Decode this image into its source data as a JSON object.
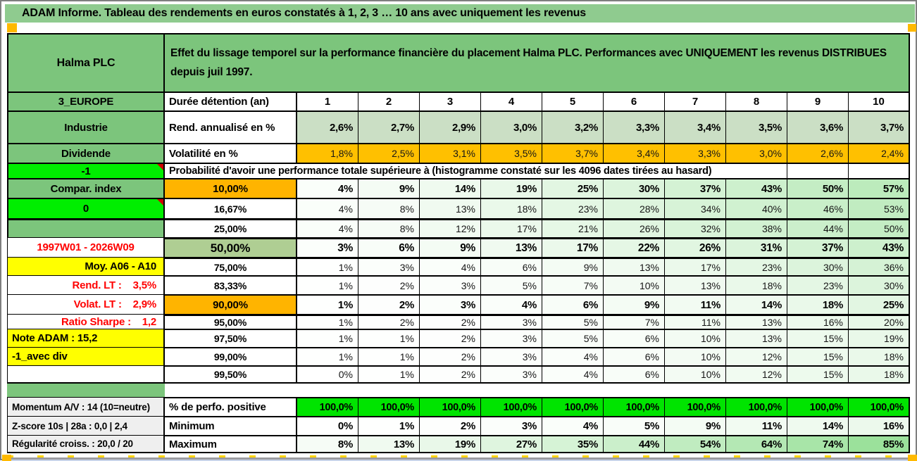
{
  "title_bar": {
    "text": "ADAM Informe. Tableau des rendements en euros constatés à 1, 2, 3 … 10 ans avec uniquement les revenus"
  },
  "header": {
    "instrument": "Halma PLC",
    "description": "Effet du lissage temporel sur la performance financière du placement Halma PLC. Performances avec UNIQUEMENT les revenus DISTRIBUES depuis juil 1997."
  },
  "left_panel": {
    "rows": [
      {
        "label": "3_EUROPE",
        "style": "green"
      },
      {
        "label": "Industrie",
        "style": "green"
      },
      {
        "label": "Dividende",
        "style": "green"
      },
      {
        "label": "-1",
        "style": "bright"
      },
      {
        "label": "Compar. index",
        "style": "green"
      },
      {
        "label": "0",
        "style": "bright"
      },
      {
        "label": "",
        "style": "green"
      },
      {
        "label": "1997W01 - 2026W09",
        "style": "red"
      },
      {
        "label": "Moy. A06 - A10",
        "style": "yellow-right"
      },
      {
        "label": "Rend. LT :    3,5%",
        "style": "red-right"
      },
      {
        "label": "Volat. LT :    2,9%",
        "style": "red-right"
      },
      {
        "label": "Ratio Sharpe :    1,2",
        "style": "red-right"
      },
      {
        "label": "Note ADAM : 15,2",
        "style": "yellow-left"
      },
      {
        "label": "-1_avec div",
        "style": "yellow-left"
      },
      {
        "label": "",
        "style": "white"
      },
      {
        "label": "Momentum A/V : 14 (10=neutre)",
        "style": "gray"
      },
      {
        "label": "Z-score 10s | 28a : 0,0 | 2,4",
        "style": "gray"
      },
      {
        "label": "Régularité croiss. : 20,0 / 20",
        "style": "gray"
      }
    ]
  },
  "table": {
    "duration_label": "Durée détention (an)",
    "durations": [
      "1",
      "2",
      "3",
      "4",
      "5",
      "6",
      "7",
      "8",
      "9",
      "10"
    ],
    "rend_label": "Rend. annualisé en %",
    "rend_values": [
      "2,6%",
      "2,7%",
      "2,9%",
      "3,0%",
      "3,2%",
      "3,3%",
      "3,4%",
      "3,5%",
      "3,6%",
      "3,7%"
    ],
    "vol_label": "Volatilité en %",
    "vol_values": [
      "1,8%",
      "2,5%",
      "3,1%",
      "3,5%",
      "3,7%",
      "3,4%",
      "3,3%",
      "3,0%",
      "2,6%",
      "2,4%"
    ],
    "prob_header": "Probabilité d'avoir une performance totale supérieure à (histogramme constaté sur les 4096 dates tirées au hasard)",
    "percentile_rows": [
      {
        "label": "10,00%",
        "highlight": "orange",
        "bold": true,
        "values": [
          "4%",
          "9%",
          "14%",
          "19%",
          "25%",
          "30%",
          "37%",
          "43%",
          "50%",
          "57%"
        ]
      },
      {
        "label": "16,67%",
        "highlight": "none",
        "bold": false,
        "values": [
          "4%",
          "8%",
          "13%",
          "18%",
          "23%",
          "28%",
          "34%",
          "40%",
          "46%",
          "53%"
        ]
      },
      {
        "label": "25,00%",
        "highlight": "none",
        "bold": false,
        "values": [
          "4%",
          "8%",
          "12%",
          "17%",
          "21%",
          "26%",
          "32%",
          "38%",
          "44%",
          "50%"
        ]
      },
      {
        "label": "50,00%",
        "highlight": "green",
        "bold": true,
        "values": [
          "3%",
          "6%",
          "9%",
          "13%",
          "17%",
          "22%",
          "26%",
          "31%",
          "37%",
          "43%"
        ]
      },
      {
        "label": "75,00%",
        "highlight": "none",
        "bold": false,
        "values": [
          "1%",
          "3%",
          "4%",
          "6%",
          "9%",
          "13%",
          "17%",
          "23%",
          "30%",
          "36%"
        ]
      },
      {
        "label": "83,33%",
        "highlight": "none",
        "bold": false,
        "values": [
          "1%",
          "2%",
          "3%",
          "5%",
          "7%",
          "10%",
          "13%",
          "18%",
          "23%",
          "30%"
        ]
      },
      {
        "label": "90,00%",
        "highlight": "orange",
        "bold": true,
        "values": [
          "1%",
          "2%",
          "3%",
          "4%",
          "6%",
          "9%",
          "11%",
          "14%",
          "18%",
          "25%"
        ]
      },
      {
        "label": "95,00%",
        "highlight": "none",
        "bold": false,
        "values": [
          "1%",
          "2%",
          "2%",
          "3%",
          "5%",
          "7%",
          "11%",
          "13%",
          "16%",
          "20%"
        ]
      },
      {
        "label": "97,50%",
        "highlight": "none",
        "bold": false,
        "values": [
          "1%",
          "1%",
          "2%",
          "3%",
          "5%",
          "6%",
          "10%",
          "13%",
          "15%",
          "19%"
        ]
      },
      {
        "label": "99,00%",
        "highlight": "none",
        "bold": false,
        "values": [
          "1%",
          "1%",
          "2%",
          "3%",
          "4%",
          "6%",
          "10%",
          "12%",
          "15%",
          "18%"
        ]
      },
      {
        "label": "99,50%",
        "highlight": "none",
        "bold": false,
        "values": [
          "0%",
          "1%",
          "2%",
          "3%",
          "4%",
          "6%",
          "10%",
          "12%",
          "15%",
          "18%"
        ]
      }
    ],
    "summary_rows": [
      {
        "label": "% de perfo. positive",
        "style": "positive",
        "values": [
          "100,0%",
          "100,0%",
          "100,0%",
          "100,0%",
          "100,0%",
          "100,0%",
          "100,0%",
          "100,0%",
          "100,0%",
          "100,0%"
        ]
      },
      {
        "label": "Minimum",
        "style": "minmax",
        "values": [
          "0%",
          "1%",
          "2%",
          "3%",
          "4%",
          "5%",
          "9%",
          "11%",
          "14%",
          "16%"
        ]
      },
      {
        "label": "Maximum",
        "style": "minmax",
        "values": [
          "8%",
          "13%",
          "19%",
          "27%",
          "35%",
          "44%",
          "54%",
          "64%",
          "74%",
          "85%"
        ]
      }
    ]
  },
  "colors": {
    "title_green": "#8FCB8F",
    "band_green": "#7CC57C",
    "bright_green": "#00EE00",
    "summary_green": "#00E400",
    "accent_orange": "#FFB400",
    "vol_orange": "#FFC000",
    "marker_orange": "#FFB900",
    "yellow": "#FFFF00",
    "median_green": "#AFCE93",
    "rend_green": "#CBDFC5",
    "red_text": "#FF0000",
    "gray_label": "#EFEFEF",
    "value_green_max": "#7ED87E"
  }
}
